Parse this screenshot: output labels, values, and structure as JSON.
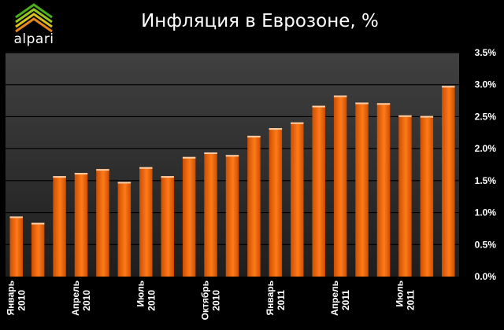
{
  "brand": {
    "logo_text": "alpari"
  },
  "colors": {
    "bar": "#ff7a1a",
    "bar_dark": "#cc4e00",
    "plot_top": "#404040",
    "plot_bottom": "#1e1e1e",
    "gridline": "#000000"
  },
  "chart_data": {
    "type": "bar",
    "title": "Инфляция в Еврозоне, %",
    "xlabel": "",
    "ylabel": "",
    "ylim": [
      0,
      3.5
    ],
    "yticks": [
      "0.0%",
      "0.5%",
      "1.0%",
      "1.5%",
      "2.0%",
      "2.5%",
      "3.0%",
      "3.5%"
    ],
    "grid": true,
    "categories": [
      "2010-01",
      "2010-02",
      "2010-03",
      "2010-04",
      "2010-05",
      "2010-06",
      "2010-07",
      "2010-08",
      "2010-09",
      "2010-10",
      "2010-11",
      "2010-12",
      "2011-01",
      "2011-02",
      "2011-03",
      "2011-04",
      "2011-05",
      "2011-06",
      "2011-07",
      "2011-08",
      "2011-09"
    ],
    "values": [
      0.94,
      0.84,
      1.57,
      1.62,
      1.68,
      1.48,
      1.71,
      1.57,
      1.87,
      1.94,
      1.9,
      2.2,
      2.32,
      2.41,
      2.67,
      2.83,
      2.72,
      2.71,
      2.52,
      2.51,
      2.98
    ],
    "x_tick_labels": [
      {
        "index": 0,
        "month": "Январь",
        "year": "2010"
      },
      {
        "index": 3,
        "month": "Апрель",
        "year": "2010"
      },
      {
        "index": 6,
        "month": "Июль",
        "year": "2010"
      },
      {
        "index": 9,
        "month": "Октябрь",
        "year": "2010"
      },
      {
        "index": 12,
        "month": "Январь",
        "year": "2011"
      },
      {
        "index": 15,
        "month": "Апрель",
        "year": "2011"
      },
      {
        "index": 18,
        "month": "Июль",
        "year": "2011"
      }
    ]
  }
}
